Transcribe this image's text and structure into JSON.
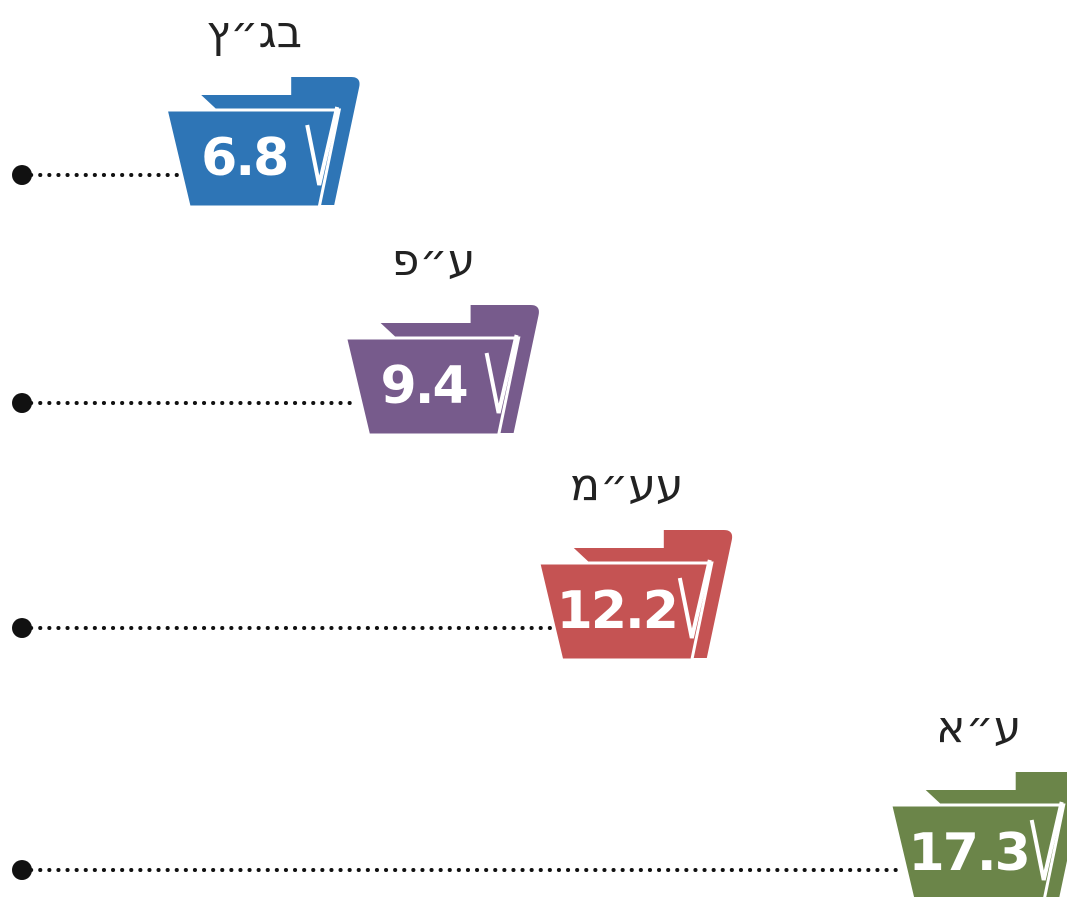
{
  "chart_data": {
    "type": "folder-dot",
    "categories": [
      "בג״ץ",
      "ע״פ",
      "עע״מ",
      "ע״א"
    ],
    "values": [
      6.8,
      9.4,
      12.2,
      17.3
    ],
    "colors": [
      "#2e75b6",
      "#775b8c",
      "#c55353",
      "#6b8549"
    ]
  }
}
